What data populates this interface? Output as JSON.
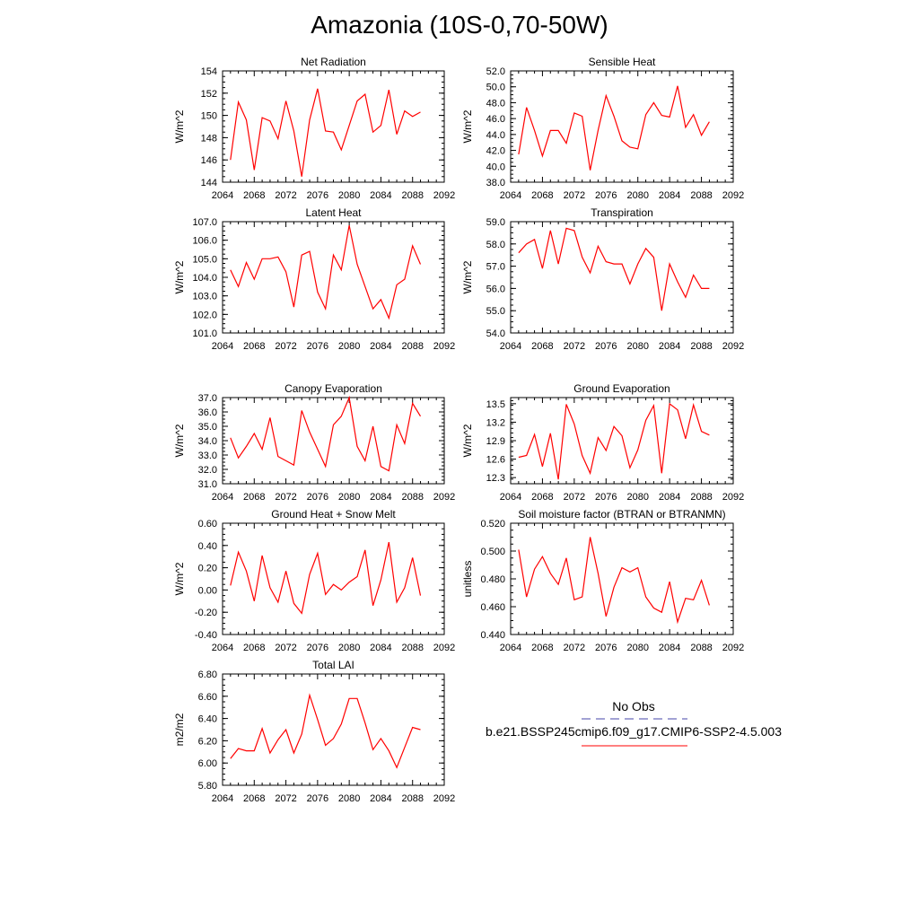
{
  "figure": {
    "title": "Amazonia (10S-0,70-50W)",
    "legend": {
      "obs_label": "No Obs",
      "obs_color": "#4444aa",
      "model_label": "b.e21.BSSP245cmip6.f09_g17.CMIP6-SSP2-4.5.003",
      "model_color": "#ff0000"
    }
  },
  "chart_data": [
    {
      "type": "line",
      "title": "Net Radiation",
      "ylabel": "W/m^2",
      "xlabel": "",
      "xlim": [
        2064,
        2092
      ],
      "ylim": [
        144,
        154
      ],
      "xticks": [
        "2064",
        "2068",
        "2072",
        "2076",
        "2080",
        "2084",
        "2088",
        "2092"
      ],
      "yticks": [
        "144",
        "146",
        "148",
        "150",
        "152",
        "154"
      ],
      "x": [
        2065,
        2066,
        2067,
        2068,
        2069,
        2070,
        2071,
        2072,
        2073,
        2074,
        2075,
        2076,
        2077,
        2078,
        2079,
        2080,
        2081,
        2082,
        2083,
        2084,
        2085,
        2086,
        2087,
        2088,
        2089
      ],
      "series": [
        {
          "values": [
            146.0,
            151.2,
            149.6,
            145.1,
            149.8,
            149.5,
            147.9,
            151.3,
            148.6,
            144.5,
            149.6,
            152.4,
            148.6,
            148.5,
            146.9,
            149.1,
            151.3,
            151.9,
            148.5,
            149.1,
            152.3,
            148.3,
            150.4,
            149.9,
            150.3
          ]
        }
      ]
    },
    {
      "type": "line",
      "title": "Sensible Heat",
      "ylabel": "W/m^2",
      "xlabel": "",
      "xlim": [
        2064,
        2092
      ],
      "ylim": [
        38.0,
        52.0
      ],
      "xticks": [
        "2064",
        "2068",
        "2072",
        "2076",
        "2080",
        "2084",
        "2088",
        "2092"
      ],
      "yticks": [
        "38.0",
        "40.0",
        "42.0",
        "44.0",
        "46.0",
        "48.0",
        "50.0",
        "52.0"
      ],
      "x": [
        2065,
        2066,
        2067,
        2068,
        2069,
        2070,
        2071,
        2072,
        2073,
        2074,
        2075,
        2076,
        2077,
        2078,
        2079,
        2080,
        2081,
        2082,
        2083,
        2084,
        2085,
        2086,
        2087,
        2088,
        2089
      ],
      "series": [
        {
          "values": [
            41.5,
            47.4,
            44.5,
            41.3,
            44.5,
            44.5,
            42.9,
            46.7,
            46.3,
            39.5,
            44.5,
            48.9,
            46.3,
            43.2,
            42.4,
            42.2,
            46.5,
            48.0,
            46.4,
            46.2,
            50.1,
            44.9,
            46.5,
            43.9,
            45.6
          ]
        }
      ]
    },
    {
      "type": "line",
      "title": "Latent Heat",
      "ylabel": "W/m^2",
      "xlabel": "",
      "xlim": [
        2064,
        2092
      ],
      "ylim": [
        101.0,
        107.0
      ],
      "xticks": [
        "2064",
        "2068",
        "2072",
        "2076",
        "2080",
        "2084",
        "2088",
        "2092"
      ],
      "yticks": [
        "101.0",
        "102.0",
        "103.0",
        "104.0",
        "105.0",
        "106.0",
        "107.0"
      ],
      "x": [
        2065,
        2066,
        2067,
        2068,
        2069,
        2070,
        2071,
        2072,
        2073,
        2074,
        2075,
        2076,
        2077,
        2078,
        2079,
        2080,
        2081,
        2082,
        2083,
        2084,
        2085,
        2086,
        2087,
        2088,
        2089
      ],
      "series": [
        {
          "values": [
            104.4,
            103.5,
            104.8,
            103.9,
            105.0,
            105.0,
            105.1,
            104.3,
            102.4,
            105.2,
            105.4,
            103.2,
            102.3,
            105.2,
            104.4,
            106.8,
            104.7,
            103.5,
            102.3,
            102.8,
            101.8,
            103.6,
            103.9,
            105.7,
            104.7
          ]
        }
      ]
    },
    {
      "type": "line",
      "title": "Transpiration",
      "ylabel": "W/m^2",
      "xlabel": "",
      "xlim": [
        2064,
        2092
      ],
      "ylim": [
        54.0,
        59.0
      ],
      "xticks": [
        "2064",
        "2068",
        "2072",
        "2076",
        "2080",
        "2084",
        "2088",
        "2092"
      ],
      "yticks": [
        "54.0",
        "55.0",
        "56.0",
        "57.0",
        "58.0",
        "59.0"
      ],
      "x": [
        2065,
        2066,
        2067,
        2068,
        2069,
        2070,
        2071,
        2072,
        2073,
        2074,
        2075,
        2076,
        2077,
        2078,
        2079,
        2080,
        2081,
        2082,
        2083,
        2084,
        2085,
        2086,
        2087,
        2088,
        2089
      ],
      "series": [
        {
          "values": [
            57.6,
            58.0,
            58.2,
            56.9,
            58.6,
            57.1,
            58.7,
            58.6,
            57.4,
            56.7,
            57.9,
            57.2,
            57.1,
            57.1,
            56.2,
            57.1,
            57.8,
            57.4,
            55.0,
            57.1,
            56.3,
            55.6,
            56.6,
            56.0,
            56.0
          ]
        }
      ]
    },
    {
      "type": "line",
      "title": "Canopy Evaporation",
      "ylabel": "W/m^2",
      "xlabel": "",
      "xlim": [
        2064,
        2092
      ],
      "ylim": [
        31.0,
        37.0
      ],
      "xticks": [
        "2064",
        "2068",
        "2072",
        "2076",
        "2080",
        "2084",
        "2088",
        "2092"
      ],
      "yticks": [
        "31.0",
        "32.0",
        "33.0",
        "34.0",
        "35.0",
        "36.0",
        "37.0"
      ],
      "x": [
        2065,
        2066,
        2067,
        2068,
        2069,
        2070,
        2071,
        2072,
        2073,
        2074,
        2075,
        2076,
        2077,
        2078,
        2079,
        2080,
        2081,
        2082,
        2083,
        2084,
        2085,
        2086,
        2087,
        2088,
        2089
      ],
      "series": [
        {
          "values": [
            34.2,
            32.8,
            33.6,
            34.5,
            33.4,
            35.6,
            32.9,
            32.6,
            32.3,
            36.1,
            34.6,
            33.4,
            32.2,
            35.1,
            35.7,
            37.0,
            33.6,
            32.6,
            35.0,
            32.2,
            31.9,
            35.1,
            33.8,
            36.6,
            35.7
          ]
        }
      ]
    },
    {
      "type": "line",
      "title": "Ground Evaporation",
      "ylabel": "W/m^2",
      "xlabel": "",
      "xlim": [
        2064,
        2092
      ],
      "ylim": [
        12.2,
        13.6
      ],
      "xticks": [
        "2064",
        "2068",
        "2072",
        "2076",
        "2080",
        "2084",
        "2088",
        "2092"
      ],
      "yticks": [
        "12.3",
        "12.6",
        "12.9",
        "13.2",
        "13.5"
      ],
      "x": [
        2065,
        2066,
        2067,
        2068,
        2069,
        2070,
        2071,
        2072,
        2073,
        2074,
        2075,
        2076,
        2077,
        2078,
        2079,
        2080,
        2081,
        2082,
        2083,
        2084,
        2085,
        2086,
        2087,
        2088,
        2089
      ],
      "series": [
        {
          "values": [
            12.63,
            12.66,
            13.0,
            12.48,
            13.02,
            12.27,
            13.49,
            13.17,
            12.66,
            12.37,
            12.95,
            12.74,
            13.13,
            12.98,
            12.46,
            12.75,
            13.23,
            13.47,
            12.37,
            13.5,
            13.4,
            12.93,
            13.48,
            13.05,
            12.99
          ]
        }
      ]
    },
    {
      "type": "line",
      "title": "Ground Heat + Snow Melt",
      "ylabel": "W/m^2",
      "xlabel": "",
      "xlim": [
        2064,
        2092
      ],
      "ylim": [
        -0.4,
        0.6
      ],
      "xticks": [
        "2064",
        "2068",
        "2072",
        "2076",
        "2080",
        "2084",
        "2088",
        "2092"
      ],
      "yticks": [
        "-0.40",
        "-0.20",
        "0.00",
        "0.20",
        "0.40",
        "0.60"
      ],
      "x": [
        2065,
        2066,
        2067,
        2068,
        2069,
        2070,
        2071,
        2072,
        2073,
        2074,
        2075,
        2076,
        2077,
        2078,
        2079,
        2080,
        2081,
        2082,
        2083,
        2084,
        2085,
        2086,
        2087,
        2088,
        2089
      ],
      "series": [
        {
          "values": [
            0.04,
            0.34,
            0.17,
            -0.1,
            0.31,
            0.02,
            -0.11,
            0.17,
            -0.12,
            -0.21,
            0.14,
            0.33,
            -0.04,
            0.05,
            0.0,
            0.07,
            0.12,
            0.36,
            -0.14,
            0.09,
            0.43,
            -0.11,
            0.02,
            0.29,
            -0.05
          ]
        }
      ]
    },
    {
      "type": "line",
      "title": "Soil moisture factor (BTRAN or BTRANMN)",
      "ylabel": "unitless",
      "xlabel": "",
      "xlim": [
        2064,
        2092
      ],
      "ylim": [
        0.44,
        0.52
      ],
      "xticks": [
        "2064",
        "2068",
        "2072",
        "2076",
        "2080",
        "2084",
        "2088",
        "2092"
      ],
      "yticks": [
        "0.440",
        "0.460",
        "0.480",
        "0.500",
        "0.520"
      ],
      "x": [
        2065,
        2066,
        2067,
        2068,
        2069,
        2070,
        2071,
        2072,
        2073,
        2074,
        2075,
        2076,
        2077,
        2078,
        2079,
        2080,
        2081,
        2082,
        2083,
        2084,
        2085,
        2086,
        2087,
        2088,
        2089
      ],
      "series": [
        {
          "values": [
            0.501,
            0.467,
            0.487,
            0.496,
            0.484,
            0.476,
            0.495,
            0.465,
            0.467,
            0.51,
            0.484,
            0.453,
            0.474,
            0.488,
            0.485,
            0.488,
            0.467,
            0.459,
            0.456,
            0.478,
            0.449,
            0.466,
            0.465,
            0.479,
            0.461
          ]
        }
      ]
    },
    {
      "type": "line",
      "title": "Total LAI",
      "ylabel": "m2/m2",
      "xlabel": "",
      "xlim": [
        2064,
        2092
      ],
      "ylim": [
        5.8,
        6.8
      ],
      "xticks": [
        "2064",
        "2068",
        "2072",
        "2076",
        "2080",
        "2084",
        "2088",
        "2092"
      ],
      "yticks": [
        "5.80",
        "6.00",
        "6.20",
        "6.40",
        "6.60",
        "6.80"
      ],
      "x": [
        2065,
        2066,
        2067,
        2068,
        2069,
        2070,
        2071,
        2072,
        2073,
        2074,
        2075,
        2076,
        2077,
        2078,
        2079,
        2080,
        2081,
        2082,
        2083,
        2084,
        2085,
        2086,
        2087,
        2088,
        2089
      ],
      "series": [
        {
          "values": [
            6.04,
            6.13,
            6.11,
            6.11,
            6.31,
            6.09,
            6.21,
            6.3,
            6.09,
            6.26,
            6.61,
            6.39,
            6.16,
            6.22,
            6.35,
            6.58,
            6.58,
            6.36,
            6.12,
            6.22,
            6.11,
            5.96,
            6.14,
            6.32,
            6.3
          ]
        }
      ]
    }
  ]
}
